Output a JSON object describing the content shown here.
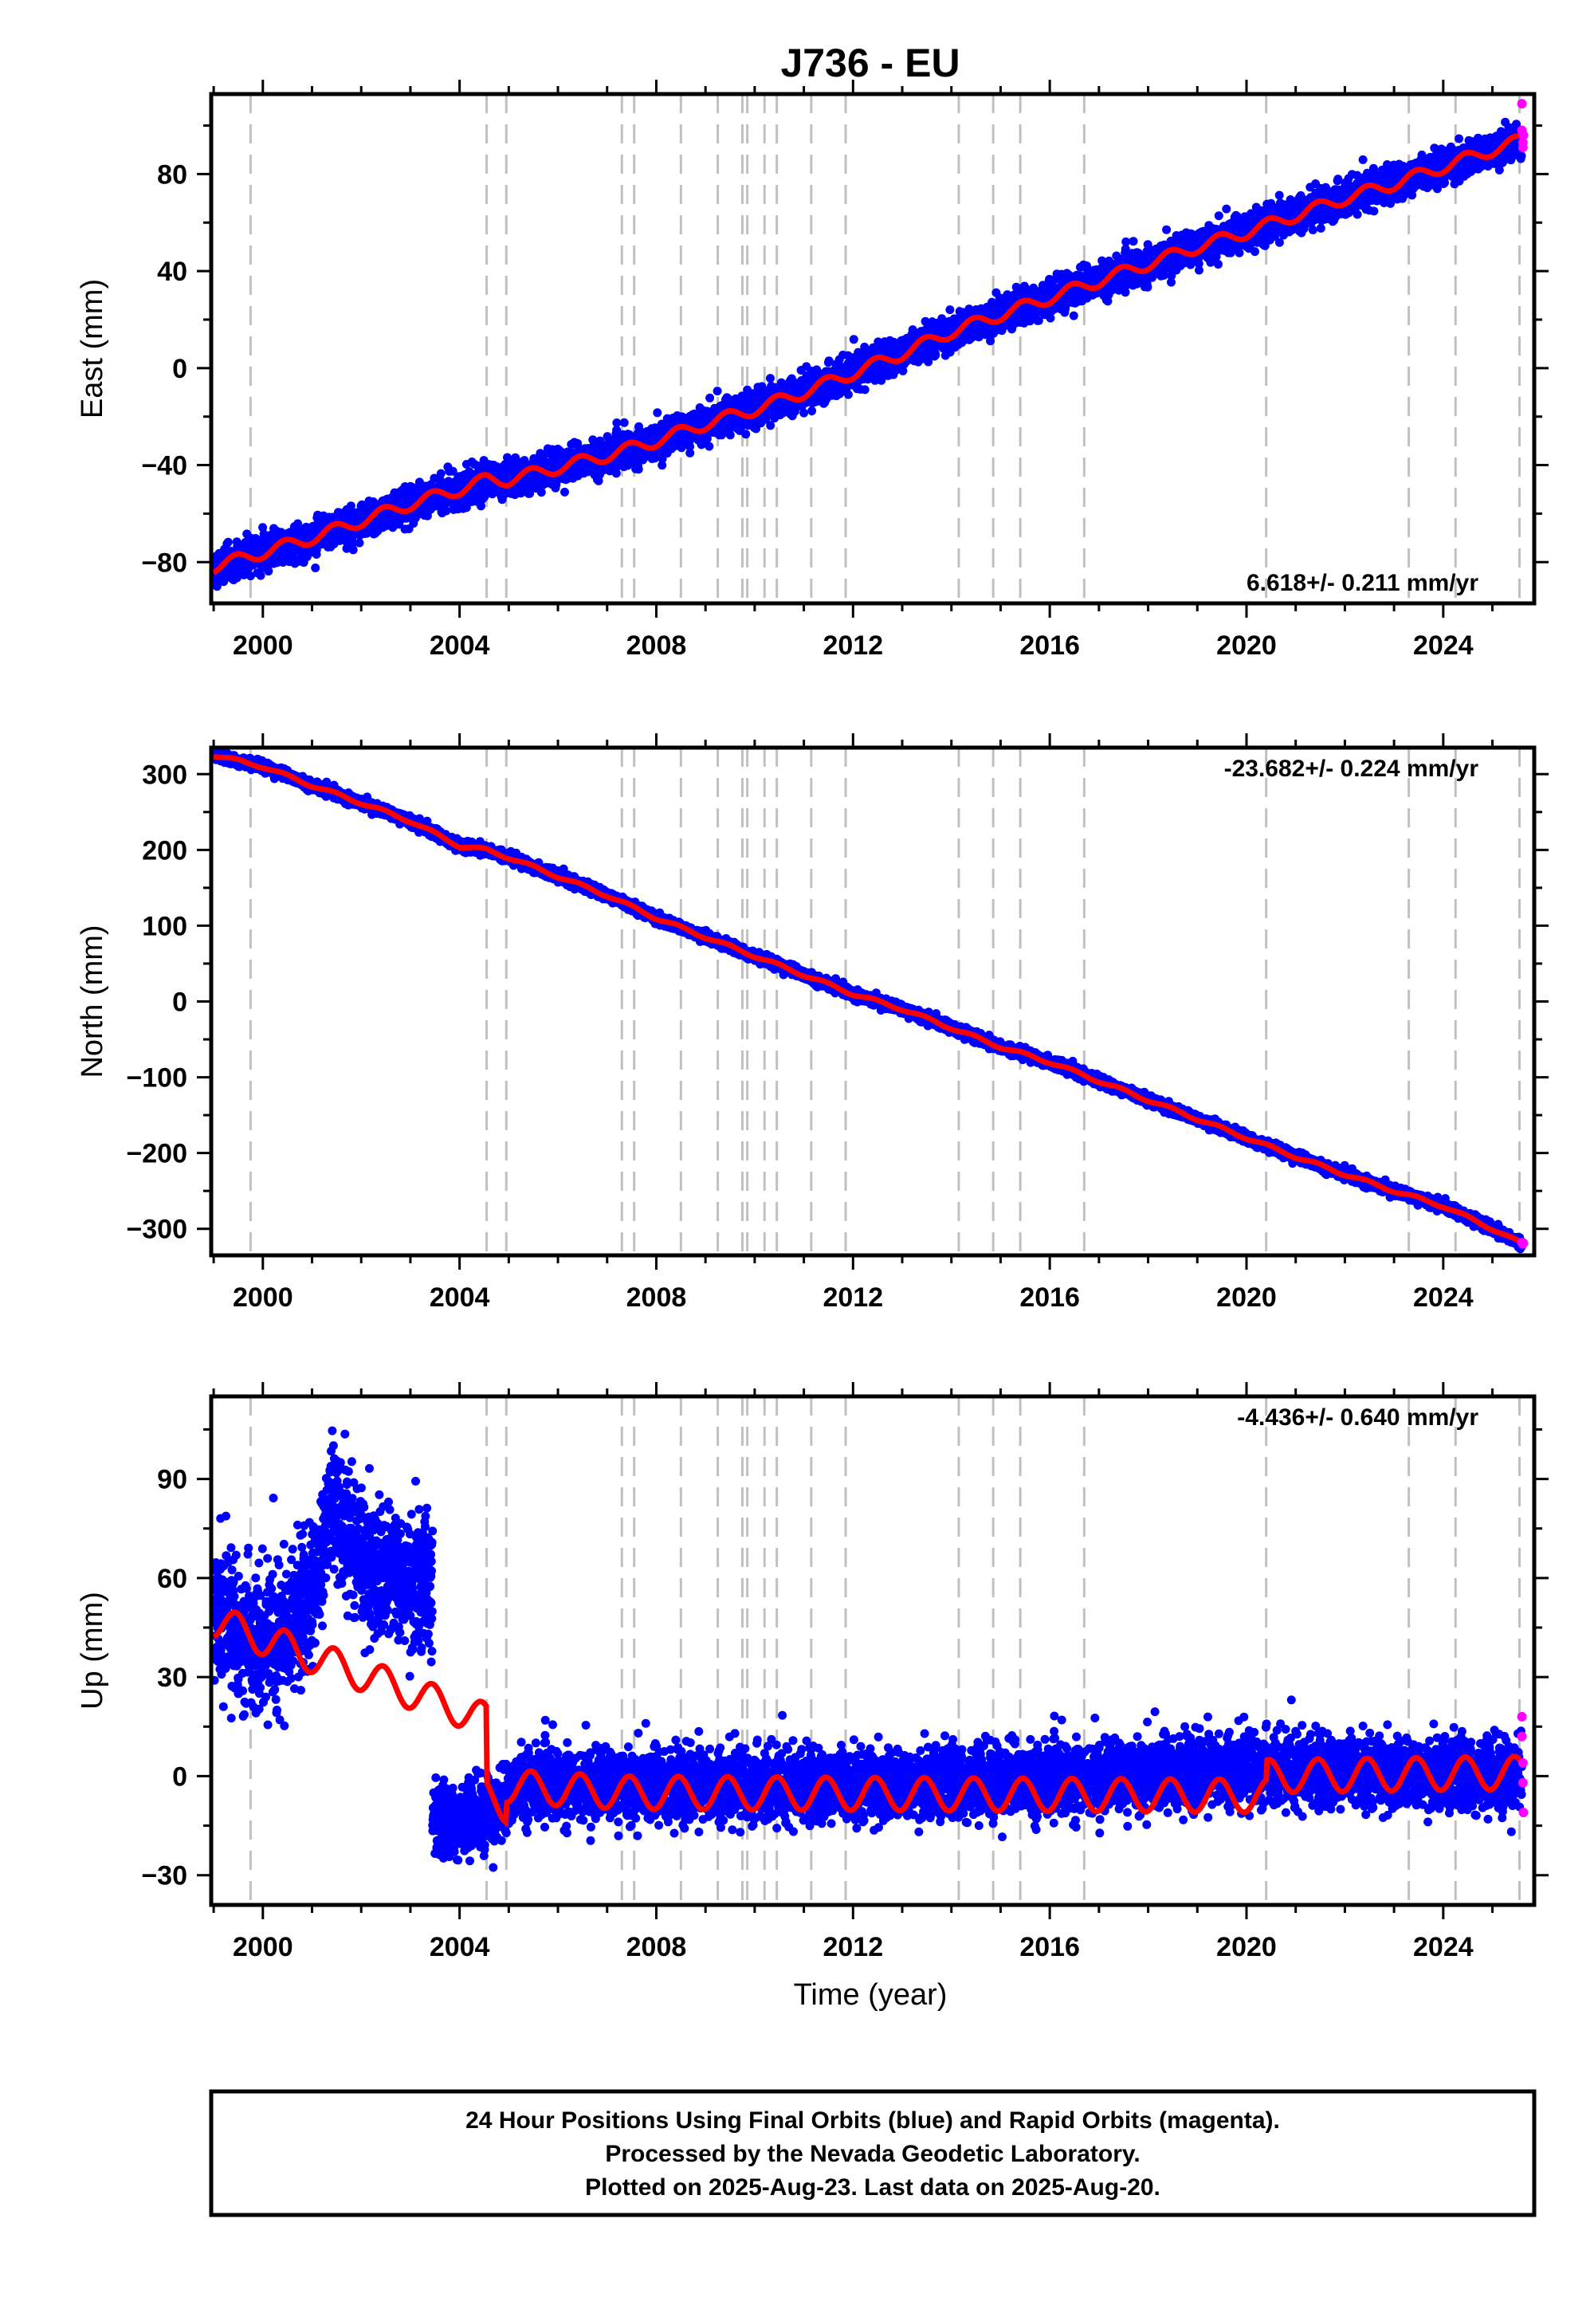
{
  "title": "J736 - EU",
  "xlabel": "Time (year)",
  "colors": {
    "final_orbits": "#0000ff",
    "rapid_orbits": "#ff00ff",
    "model": "#ff0000",
    "event_lines": "#c0c0c0",
    "frame": "#000000"
  },
  "caption": {
    "line1": "24 Hour Positions Using Final Orbits (blue) and Rapid Orbits (magenta).",
    "line2": "Processed by the Nevada Geodetic Laboratory.",
    "line3": "Plotted on 2025-Aug-23. Last data on 2025-Aug-20."
  },
  "chart_data": [
    {
      "type": "scatter",
      "panel": "east",
      "ylabel": "East (mm)",
      "rate_label": "6.618+/- 0.211 mm/yr",
      "rate_position": "bottom-right",
      "xlim": [
        1998.95,
        2025.85
      ],
      "ylim": [
        -97,
        113
      ],
      "xticks": [
        2000,
        2004,
        2008,
        2012,
        2016,
        2020,
        2024
      ],
      "yticks": [
        -80,
        -40,
        0,
        40,
        80
      ],
      "event_lines": [
        1999.75,
        2004.55,
        2004.95,
        2007.3,
        2007.55,
        2008.5,
        2009.25,
        2009.75,
        2009.85,
        2010.2,
        2010.45,
        2011.15,
        2011.85,
        2014.15,
        2014.85,
        2015.4,
        2016.7,
        2020.4,
        2023.3,
        2024.25,
        2025.55
      ],
      "series": [
        {
          "name": "Final Orbits",
          "trend_points": [
            [
              1999.0,
              -82
            ],
            [
              2000.0,
              -76
            ],
            [
              2001.0,
              -70
            ],
            [
              2002.0,
              -63
            ],
            [
              2003.0,
              -56
            ],
            [
              2004.0,
              -50
            ],
            [
              2004.55,
              -46
            ],
            [
              2005.0,
              -46
            ],
            [
              2006.0,
              -41
            ],
            [
              2007.0,
              -36
            ],
            [
              2008.0,
              -30
            ],
            [
              2009.0,
              -23
            ],
            [
              2010.0,
              -17
            ],
            [
              2011.0,
              -10
            ],
            [
              2012.0,
              -2
            ],
            [
              2013.0,
              6
            ],
            [
              2014.0,
              15
            ],
            [
              2015.0,
              22
            ],
            [
              2016.0,
              29
            ],
            [
              2017.0,
              36
            ],
            [
              2018.0,
              43
            ],
            [
              2019.0,
              50
            ],
            [
              2020.0,
              56
            ],
            [
              2021.0,
              63
            ],
            [
              2022.0,
              70
            ],
            [
              2023.0,
              76
            ],
            [
              2024.0,
              83
            ],
            [
              2025.0,
              90
            ],
            [
              2025.6,
              94
            ]
          ],
          "scatter_sd": 3.2
        },
        {
          "name": "Rapid Orbits",
          "points": [
            [
              2025.6,
              109
            ],
            [
              2025.6,
              98
            ],
            [
              2025.62,
              93
            ],
            [
              2025.62,
              91
            ],
            [
              2025.63,
              96
            ]
          ]
        },
        {
          "name": "Model",
          "seasonal_amplitude": 2.5,
          "offsets": []
        }
      ]
    },
    {
      "type": "scatter",
      "panel": "north",
      "ylabel": "North (mm)",
      "rate_label": "-23.682+/- 0.224 mm/yr",
      "rate_position": "top-right",
      "xlim": [
        1998.95,
        2025.85
      ],
      "ylim": [
        -335,
        335
      ],
      "xticks": [
        2000,
        2004,
        2008,
        2012,
        2016,
        2020,
        2024
      ],
      "yticks": [
        -300,
        -200,
        -100,
        0,
        100,
        200,
        300
      ],
      "event_lines": [
        1999.75,
        2004.55,
        2004.95,
        2007.3,
        2007.55,
        2008.5,
        2009.25,
        2009.75,
        2009.85,
        2010.2,
        2010.45,
        2011.15,
        2011.85,
        2014.15,
        2014.85,
        2015.4,
        2016.7,
        2020.4,
        2023.3,
        2024.25,
        2025.55
      ],
      "series": [
        {
          "name": "Final Orbits",
          "trend_points": [
            [
              1999.0,
              325
            ],
            [
              2000.0,
              310
            ],
            [
              2001.0,
              285
            ],
            [
              2002.0,
              262
            ],
            [
              2003.0,
              238
            ],
            [
              2004.0,
              205
            ],
            [
              2004.55,
              200
            ],
            [
              2005.0,
              190
            ],
            [
              2006.0,
              165
            ],
            [
              2007.0,
              140
            ],
            [
              2008.0,
              110
            ],
            [
              2009.0,
              85
            ],
            [
              2010.0,
              60
            ],
            [
              2011.0,
              35
            ],
            [
              2012.0,
              10
            ],
            [
              2013.0,
              -10
            ],
            [
              2014.0,
              -35
            ],
            [
              2015.0,
              -60
            ],
            [
              2016.0,
              -80
            ],
            [
              2017.0,
              -105
            ],
            [
              2018.0,
              -130
            ],
            [
              2019.0,
              -155
            ],
            [
              2020.0,
              -180
            ],
            [
              2021.0,
              -205
            ],
            [
              2022.0,
              -228
            ],
            [
              2023.0,
              -250
            ],
            [
              2024.0,
              -270
            ],
            [
              2025.0,
              -300
            ],
            [
              2025.6,
              -320
            ]
          ],
          "scatter_sd": 3
        },
        {
          "name": "Rapid Orbits",
          "points": [
            [
              2025.6,
              -318
            ],
            [
              2025.62,
              -320
            ],
            [
              2025.63,
              -319
            ]
          ]
        },
        {
          "name": "Model",
          "seasonal_amplitude": 2,
          "offsets": []
        }
      ]
    },
    {
      "type": "scatter",
      "panel": "up",
      "ylabel": "Up (mm)",
      "rate_label": "-4.436+/- 0.640 mm/yr",
      "rate_position": "top-right",
      "xlim": [
        1998.95,
        2025.85
      ],
      "ylim": [
        -39,
        115
      ],
      "xticks": [
        2000,
        2004,
        2008,
        2012,
        2016,
        2020,
        2024
      ],
      "yticks": [
        -30,
        0,
        30,
        60,
        90
      ],
      "event_lines": [
        1999.75,
        2004.55,
        2004.95,
        2007.3,
        2007.55,
        2008.5,
        2009.25,
        2009.75,
        2009.85,
        2010.2,
        2010.45,
        2011.15,
        2011.85,
        2014.15,
        2014.85,
        2015.4,
        2016.7,
        2020.4,
        2023.3,
        2024.25,
        2025.55
      ],
      "series": [
        {
          "name": "Final Orbits",
          "segments": [
            {
              "start": 1999.0,
              "end": 2003.45,
              "trend_points": [
                [
                  1999.0,
                  50
                ],
                [
                  1999.8,
                  40
                ],
                [
                  2000.4,
                  42
                ],
                [
                  2001.0,
                  55
                ],
                [
                  2001.4,
                  80
                ],
                [
                  2001.7,
                  75
                ],
                [
                  2002.0,
                  65
                ],
                [
                  2002.8,
                  60
                ],
                [
                  2003.4,
                  58
                ]
              ],
              "scatter_sd": 10
            },
            {
              "start": 2003.45,
              "end": 2025.6,
              "trend_points": [
                [
                  2003.45,
                  -15
                ],
                [
                  2004.9,
                  -10
                ],
                [
                  2005.2,
                  -2
                ],
                [
                  2008.0,
                  -3
                ],
                [
                  2012.0,
                  -3
                ],
                [
                  2016.0,
                  -1
                ],
                [
                  2020.0,
                  2
                ],
                [
                  2025.6,
                  0
                ]
              ],
              "scatter_sd": 5
            }
          ]
        },
        {
          "name": "Rapid Orbits",
          "points": [
            [
              2025.6,
              18
            ],
            [
              2025.6,
              12
            ],
            [
              2025.62,
              4
            ],
            [
              2025.62,
              -2
            ],
            [
              2025.63,
              -11
            ]
          ]
        },
        {
          "name": "Model",
          "seasonal_amplitude": 5,
          "baseline_points": [
            [
              1999.0,
              47
            ],
            [
              2004.55,
              17
            ],
            [
              2004.551,
              -6
            ],
            [
              2004.95,
              -9
            ],
            [
              2004.951,
              -3
            ],
            [
              2006.0,
              -4
            ],
            [
              2007.3,
              -5
            ],
            [
              2020.4,
              -6
            ],
            [
              2020.401,
              0
            ],
            [
              2025.6,
              1
            ]
          ]
        }
      ]
    }
  ]
}
